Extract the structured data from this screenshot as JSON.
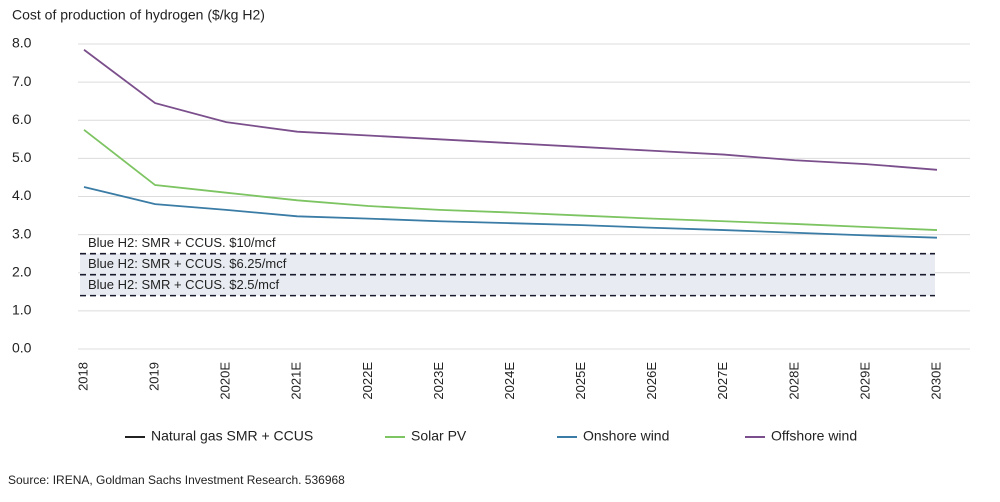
{
  "chart_data": {
    "type": "line",
    "title": "Cost of production of hydrogen ($/kg H2)",
    "source": "Source: IRENA, Goldman Sachs Investment Research. 536968",
    "categories": [
      "2018",
      "2019",
      "2020E",
      "2021E",
      "2022E",
      "2023E",
      "2024E",
      "2025E",
      "2026E",
      "2027E",
      "2028E",
      "2029E",
      "2030E"
    ],
    "series": [
      {
        "name": "Natural gas SMR + CCUS",
        "color": "#222222",
        "values": [
          null,
          null,
          null,
          null,
          null,
          null,
          null,
          null,
          null,
          null,
          null,
          null,
          null
        ]
      },
      {
        "name": "Solar PV",
        "color": "#7dc462",
        "values": [
          5.75,
          4.3,
          4.1,
          3.9,
          3.75,
          3.65,
          3.58,
          3.5,
          3.42,
          3.35,
          3.28,
          3.2,
          3.12
        ]
      },
      {
        "name": "Onshore wind",
        "color": "#3a7ca5",
        "values": [
          4.25,
          3.8,
          3.65,
          3.48,
          3.42,
          3.35,
          3.3,
          3.25,
          3.18,
          3.12,
          3.05,
          2.98,
          2.92
        ]
      },
      {
        "name": "Offshore wind",
        "color": "#7b4f8c",
        "values": [
          7.85,
          6.45,
          5.95,
          5.7,
          5.6,
          5.5,
          5.4,
          5.3,
          5.2,
          5.1,
          4.95,
          4.85,
          4.7
        ]
      }
    ],
    "reference_lines": [
      {
        "label": "Blue H2: SMR + CCUS. $10/mcf",
        "value": 2.5
      },
      {
        "label": "Blue H2: SMR + CCUS. $6.25/mcf",
        "value": 1.95
      },
      {
        "label": "Blue H2: SMR + CCUS. $2.5/mcf",
        "value": 1.4
      }
    ],
    "ylim": [
      0,
      8
    ],
    "yticks": [
      {
        "value": 0,
        "label": "0.0"
      },
      {
        "value": 1,
        "label": "1.0"
      },
      {
        "value": 2,
        "label": "2.0"
      },
      {
        "value": 3,
        "label": "3.0"
      },
      {
        "value": 4,
        "label": "4.0"
      },
      {
        "value": 5,
        "label": "5.0"
      },
      {
        "value": 6,
        "label": "6.0"
      },
      {
        "value": 7,
        "label": "7.0"
      },
      {
        "value": 8,
        "label": "8.0"
      }
    ],
    "grid": true
  }
}
